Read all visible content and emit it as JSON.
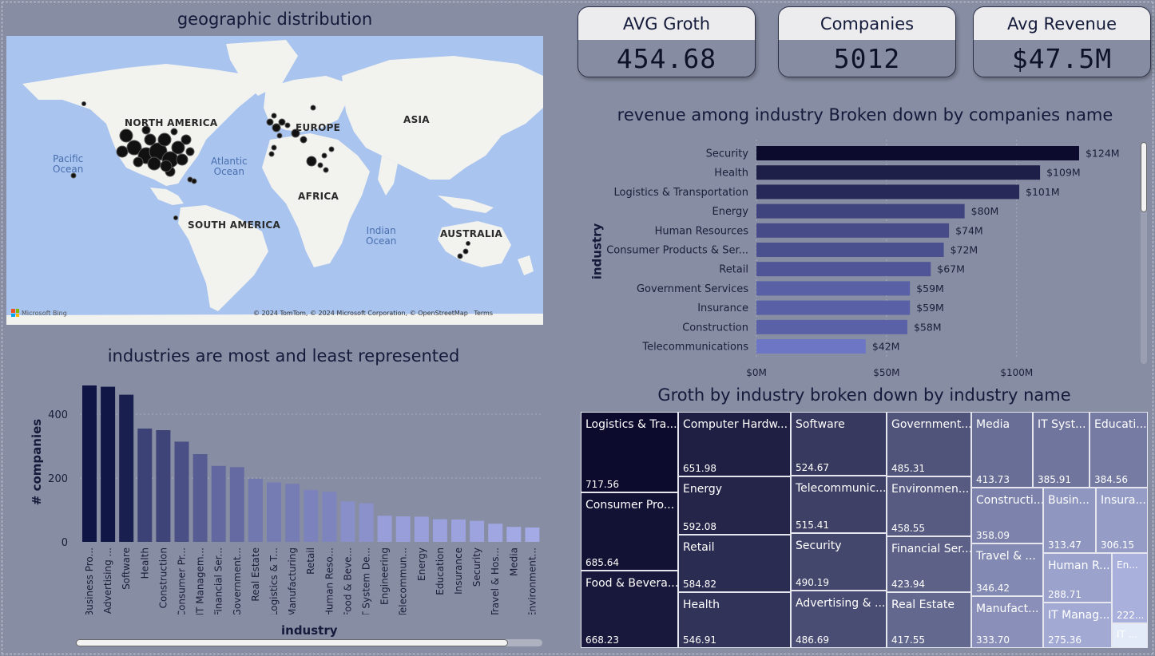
{
  "map_panel": {
    "title": "geographic distribution",
    "continents": [
      "NORTH AMERICA",
      "EUROPE",
      "ASIA",
      "AFRICA",
      "SOUTH AMERICA",
      "AUSTRALIA"
    ],
    "oceans": [
      "Pacific\nOcean",
      "Atlantic\nOcean",
      "Indian\nOcean"
    ],
    "credit": "© 2024 TomTom, © 2024 Microsoft Corporation, © OpenStreetMap   Terms",
    "brand": "Microsoft Bing"
  },
  "kpis": [
    {
      "label": "AVG Groth",
      "value": "454.68"
    },
    {
      "label": "Companies",
      "value": "5012"
    },
    {
      "label": "Avg Revenue",
      "value": "$47.5M"
    }
  ],
  "colors": {
    "background": "#878da2",
    "bar_dark": "#0c0b2e",
    "bar_light": "#a4aae6",
    "tile_dark": "#0c0b2e",
    "tile_light": "#e3ebf8"
  },
  "chart_data": [
    {
      "type": "bar",
      "orientation": "horizontal",
      "title": "revenue among industry Broken down by companies name",
      "ylabel": "industry",
      "xlabel": "",
      "categories": [
        "Security",
        "Health",
        "Logistics & Transportation",
        "Energy",
        "Human Resources",
        "Consumer Products & Ser...",
        "Retail",
        "Government Services",
        "Insurance",
        "Construction",
        "Telecommunications"
      ],
      "values": [
        124,
        109,
        101,
        80,
        74,
        72,
        67,
        59,
        59,
        58,
        42
      ],
      "data_labels": [
        "$124M",
        "$109M",
        "$101M",
        "$80M",
        "$74M",
        "$72M",
        "$67M",
        "$59M",
        "$59M",
        "$58M",
        "$42M"
      ],
      "x_ticks": [
        "$0M",
        "$50M",
        "$100M"
      ],
      "x_tick_values": [
        0,
        50,
        100
      ],
      "xlim": [
        0,
        128
      ],
      "grid": true
    },
    {
      "type": "bar",
      "title": "industries are most and least represented",
      "xlabel": "industry",
      "ylabel": "# companies",
      "categories": [
        "Business Pro...",
        "Advertising ...",
        "Software",
        "Health",
        "Construction",
        "Consumer Pr...",
        "IT Managem...",
        "Financial Ser...",
        "Government...",
        "Real Estate",
        "Logistics & T...",
        "Manufacturing",
        "Retail",
        "Human Reso...",
        "Food & Beve...",
        "IT System De...",
        "Engineering",
        "Telecommun...",
        "Energy",
        "Education",
        "Insurance",
        "Security",
        "Travel & Hos...",
        "Media",
        "Environment..."
      ],
      "values": [
        490,
        486,
        461,
        355,
        350,
        314,
        275,
        238,
        234,
        198,
        186,
        182,
        163,
        157,
        127,
        121,
        82,
        80,
        79,
        71,
        70,
        66,
        57,
        47,
        45
      ],
      "y_ticks": [
        "0",
        "200",
        "400"
      ],
      "y_tick_values": [
        0,
        200,
        400
      ],
      "ylim": [
        0,
        500
      ],
      "grid": true
    },
    {
      "type": "treemap",
      "title": "Groth by industry broken down by industry name",
      "items": [
        {
          "name": "Logistics & Tra...",
          "value": "717.56"
        },
        {
          "name": "Consumer Pro...",
          "value": "685.64"
        },
        {
          "name": "Food & Bevera...",
          "value": "668.23"
        },
        {
          "name": "Computer Hardw...",
          "value": "651.98"
        },
        {
          "name": "Energy",
          "value": "592.08"
        },
        {
          "name": "Retail",
          "value": "584.82"
        },
        {
          "name": "Health",
          "value": "546.91"
        },
        {
          "name": "Software",
          "value": "524.67"
        },
        {
          "name": "Telecommunic...",
          "value": "515.41"
        },
        {
          "name": "Security",
          "value": "490.19"
        },
        {
          "name": "Advertising & ...",
          "value": "486.69"
        },
        {
          "name": "Government...",
          "value": "485.31"
        },
        {
          "name": "Environmen...",
          "value": "458.55"
        },
        {
          "name": "Financial Ser...",
          "value": "423.94"
        },
        {
          "name": "Real Estate",
          "value": "417.55"
        },
        {
          "name": "Media",
          "value": "413.73"
        },
        {
          "name": "IT Syst...",
          "value": "385.91"
        },
        {
          "name": "Educati...",
          "value": "384.56"
        },
        {
          "name": "Constructi...",
          "value": "358.09"
        },
        {
          "name": "Travel & ...",
          "value": "346.42"
        },
        {
          "name": "Manufact...",
          "value": "333.70"
        },
        {
          "name": "Busin...",
          "value": "313.47"
        },
        {
          "name": "Insura...",
          "value": "306.15"
        },
        {
          "name": "Human R...",
          "value": "288.71"
        },
        {
          "name": "IT Manag...",
          "value": "275.36"
        },
        {
          "name": "En...",
          "value": "222..."
        },
        {
          "name": "IT ...",
          "value": ""
        }
      ]
    }
  ]
}
